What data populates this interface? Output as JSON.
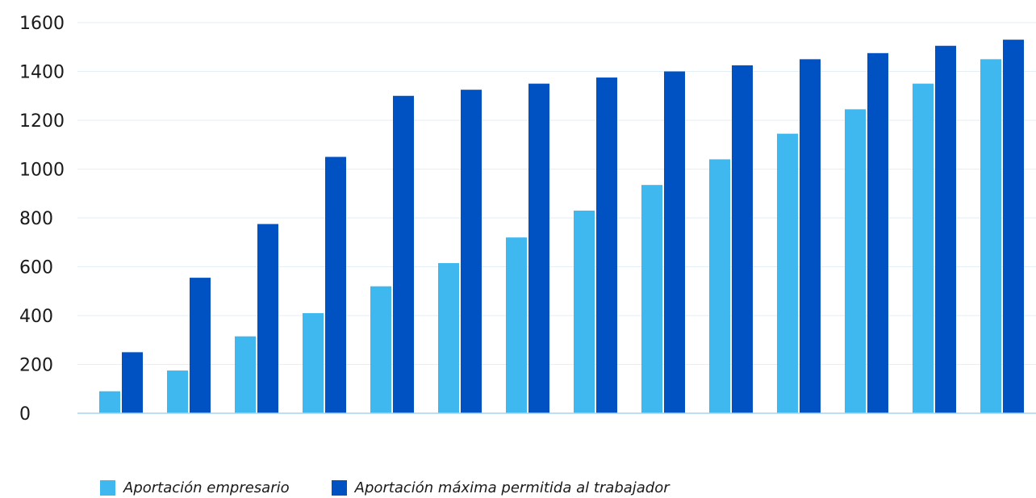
{
  "chart_data": {
    "type": "bar",
    "title": "",
    "xlabel": "",
    "ylabel": "",
    "ylim": [
      0,
      1600
    ],
    "yticks": [
      0,
      200,
      400,
      600,
      800,
      1000,
      1200,
      1400,
      1600
    ],
    "grid": true,
    "legend_position": "bottom-left",
    "category_count": 14,
    "series": [
      {
        "name": "Aportación empresario",
        "color": "#3fb8f0",
        "values": [
          90,
          175,
          315,
          410,
          520,
          615,
          720,
          830,
          935,
          1040,
          1145,
          1245,
          1350,
          1450
        ]
      },
      {
        "name": "Aportación máxima permitida al trabajador",
        "color": "#0051c2",
        "values": [
          250,
          555,
          775,
          1050,
          1300,
          1325,
          1350,
          1375,
          1400,
          1425,
          1450,
          1475,
          1505,
          1530
        ]
      }
    ]
  }
}
